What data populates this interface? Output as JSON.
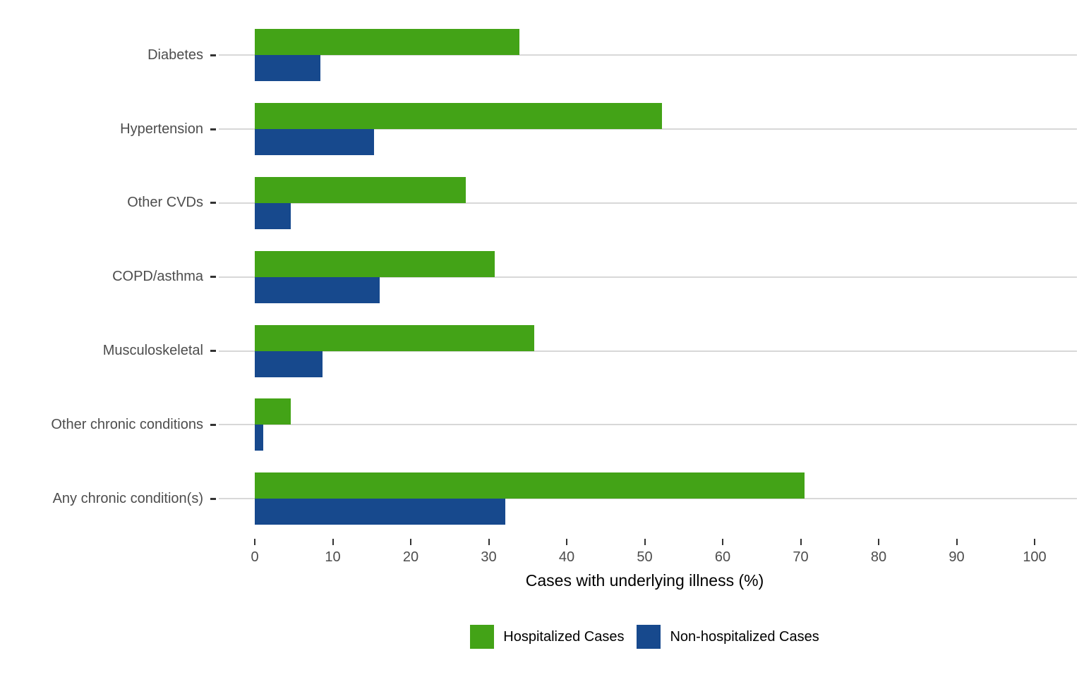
{
  "chart_data": {
    "type": "bar",
    "orientation": "horizontal",
    "title": "",
    "xlabel": "Cases with underlying illness (%)",
    "ylabel": "",
    "categories": [
      "Diabetes",
      "Hypertension",
      "Other CVDs",
      "COPD/asthma",
      "Musculoskeletal",
      "Other chronic conditions",
      "Any chronic condition(s)"
    ],
    "series": [
      {
        "name": "Hospitalized Cases",
        "color": "#43A317",
        "values": [
          33.9,
          52.2,
          27.1,
          30.8,
          35.8,
          4.6,
          70.5
        ]
      },
      {
        "name": "Non-hospitalized Cases",
        "color": "#17498D",
        "values": [
          8.4,
          15.3,
          4.6,
          16.0,
          8.7,
          1.1,
          32.1
        ]
      }
    ],
    "x_ticks": [
      0,
      10,
      20,
      30,
      40,
      50,
      60,
      70,
      80,
      90,
      100
    ],
    "xlim": [
      0,
      100
    ],
    "grid": "horizontal-category-gridlines-only",
    "gridline_color": "#D8D8D8",
    "axis_text_color": "#4D4D4D",
    "tick_mark_color": "#333333",
    "background_color": "#FFFFFF",
    "legend_position": "bottom"
  }
}
